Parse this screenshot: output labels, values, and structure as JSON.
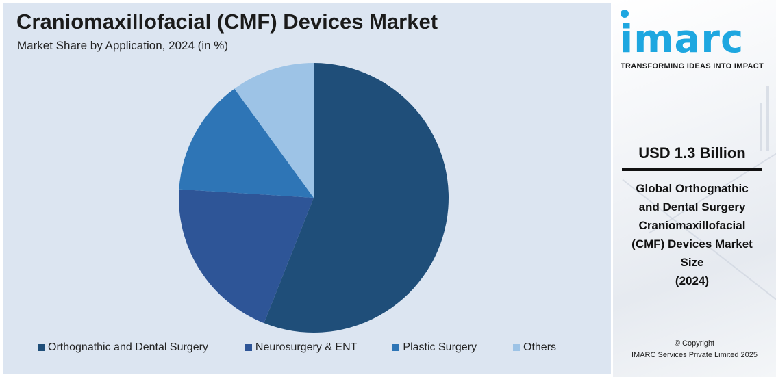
{
  "header": {
    "title": "Craniomaxillofacial (CMF) Devices Market",
    "subtitle": "Market Share by Application, 2024 (in %)"
  },
  "chart_data": {
    "type": "pie",
    "categories": [
      "Orthognathic and Dental Surgery",
      "Neurosurgery & ENT",
      "Plastic Surgery",
      "Others"
    ],
    "values": [
      56,
      20,
      14,
      10
    ],
    "colors": [
      "#1f4e79",
      "#2e5597",
      "#2e75b6",
      "#9dc3e6"
    ],
    "legend_position": "bottom"
  },
  "legend": {
    "items": [
      {
        "label": "Orthognathic and Dental Surgery",
        "color": "#1f4e79"
      },
      {
        "label": "Neurosurgery & ENT",
        "color": "#2e5597"
      },
      {
        "label": "Plastic Surgery",
        "color": "#2e75b6"
      },
      {
        "label": "Others",
        "color": "#9dc3e6"
      }
    ]
  },
  "brand": {
    "logo": "imarc",
    "tagline": "TRANSFORMING IDEAS INTO IMPACT",
    "accent_color": "#1ea7e0"
  },
  "sidebar": {
    "market_value": "USD 1.3 Billion",
    "description_lines": [
      "Global Orthognathic",
      "and Dental Surgery",
      "Craniomaxillofacial",
      "(CMF) Devices Market",
      "Size",
      "(2024)"
    ],
    "copyright_line1": "© Copyright",
    "copyright_line2": "IMARC Services Private Limited 2025"
  }
}
